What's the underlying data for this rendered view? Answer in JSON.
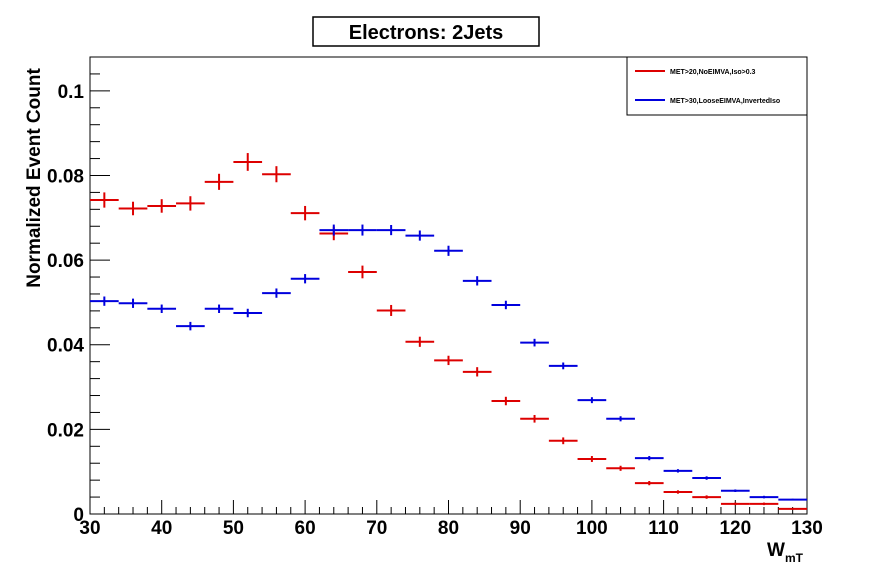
{
  "chart_data": {
    "type": "scatter",
    "title": "Electrons: 2Jets",
    "xlabel_main": "W",
    "xlabel_sub": "mT",
    "ylabel": "Normalized Event Count",
    "xlim": [
      30,
      130
    ],
    "ylim": [
      0,
      0.108
    ],
    "x_ticks": [
      30,
      40,
      50,
      60,
      70,
      80,
      90,
      100,
      110,
      120,
      130
    ],
    "y_ticks": [
      0,
      0.02,
      0.04,
      0.06,
      0.08,
      0.1
    ],
    "y_tick_labels": [
      "0",
      "0.02",
      "0.04",
      "0.06",
      "0.08",
      "0.1"
    ],
    "bin_width": 4,
    "bin_centers": [
      32,
      36,
      40,
      44,
      48,
      52,
      56,
      60,
      64,
      68,
      72,
      76,
      80,
      84,
      88,
      92,
      96,
      100,
      104,
      108,
      112,
      116,
      120,
      124,
      128
    ],
    "legend_position": "top-right",
    "series": [
      {
        "name": "MET>20,NoEIMVA,Iso>0.3",
        "color": "#dd0000",
        "values": [
          0.0742,
          0.0722,
          0.0728,
          0.0734,
          0.0785,
          0.0832,
          0.0803,
          0.0711,
          0.0663,
          0.0572,
          0.0481,
          0.0407,
          0.0363,
          0.0336,
          0.0267,
          0.0225,
          0.0173,
          0.013,
          0.0108,
          0.0073,
          0.0052,
          0.004,
          0.0024,
          0.0024,
          0.0012
        ],
        "errors": [
          0.0018,
          0.0016,
          0.0016,
          0.0017,
          0.0019,
          0.0021,
          0.0019,
          0.0017,
          0.0016,
          0.0015,
          0.0013,
          0.0012,
          0.0011,
          0.0011,
          0.001,
          0.0009,
          0.0008,
          0.0007,
          0.0006,
          0.0005,
          0.0004,
          0.0004,
          0.0003,
          0.0003,
          0.0002
        ]
      },
      {
        "name": "MET>30,LooseEIMVA,InvertedIso",
        "color": "#0000dd",
        "values": [
          0.0503,
          0.0498,
          0.0485,
          0.0444,
          0.0485,
          0.0475,
          0.0522,
          0.0556,
          0.0671,
          0.0671,
          0.0671,
          0.0658,
          0.0622,
          0.0551,
          0.0494,
          0.0405,
          0.035,
          0.0269,
          0.0225,
          0.0132,
          0.0102,
          0.0085,
          0.0055,
          0.004,
          0.0034
        ],
        "errors": [
          0.0011,
          0.0011,
          0.001,
          0.001,
          0.001,
          0.001,
          0.0011,
          0.0011,
          0.0013,
          0.0013,
          0.0012,
          0.0012,
          0.0012,
          0.0011,
          0.001,
          0.0009,
          0.0008,
          0.0007,
          0.0006,
          0.0005,
          0.0004,
          0.0004,
          0.0003,
          0.0003,
          0.0002
        ]
      }
    ]
  }
}
